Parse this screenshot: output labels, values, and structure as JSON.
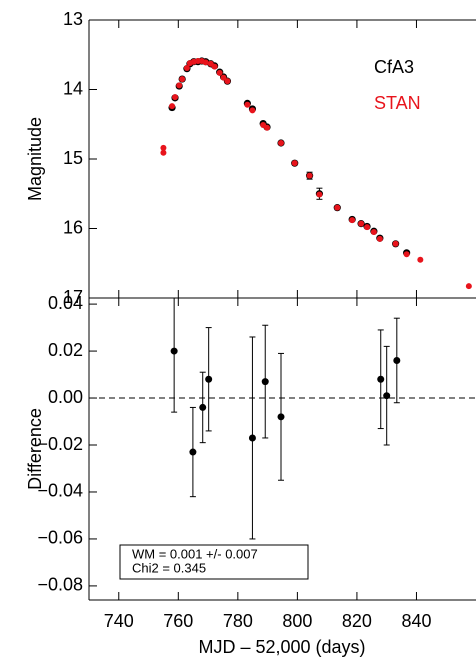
{
  "chart_data": [
    {
      "type": "scatter",
      "ylabel": "Magnitude",
      "xlim": [
        730,
        860
      ],
      "xticks": [
        740,
        760,
        780,
        800,
        820,
        840
      ],
      "ylim": [
        13,
        17
      ],
      "y_inverted": true,
      "yticks": [
        13,
        14,
        15,
        16,
        17
      ],
      "series": [
        {
          "name": "CfA3",
          "color": "#000000",
          "x": [
            757.9,
            758.9,
            760.3,
            761.3,
            762.9,
            763.9,
            765.2,
            766.6,
            767.9,
            769.2,
            770.9,
            772.2,
            773.9,
            775.2,
            776.5,
            783.2,
            784.9,
            788.5,
            789.8,
            794.5,
            799.1,
            804.1,
            807.4,
            813.4,
            818.4,
            821.4,
            823.4,
            825.7,
            827.7,
            833.0,
            836.7
          ],
          "values": [
            14.26,
            14.12,
            13.95,
            13.85,
            13.7,
            13.63,
            13.6,
            13.6,
            13.59,
            13.6,
            13.63,
            13.66,
            13.75,
            13.82,
            13.88,
            14.2,
            14.28,
            14.49,
            14.54,
            14.77,
            15.06,
            15.24,
            15.5,
            15.7,
            15.87,
            15.93,
            15.97,
            16.04,
            16.14,
            16.22,
            16.35
          ],
          "errors": [
            null,
            null,
            null,
            null,
            null,
            null,
            null,
            null,
            null,
            null,
            null,
            null,
            null,
            null,
            null,
            null,
            null,
            null,
            null,
            null,
            null,
            0.05,
            0.08,
            null,
            null,
            null,
            null,
            null,
            null,
            null,
            null
          ]
        },
        {
          "name": "STAN",
          "color": "#e8141c",
          "x": [
            755.0,
            755.0,
            757.9,
            758.9,
            760.3,
            761.3,
            762.9,
            763.9,
            765.2,
            766.6,
            767.9,
            769.2,
            770.9,
            772.2,
            773.9,
            775.2,
            776.5,
            783.2,
            784.9,
            788.5,
            789.8,
            794.5,
            799.1,
            804.1,
            807.4,
            813.4,
            818.4,
            821.4,
            823.4,
            825.7,
            827.7,
            833.0,
            836.7,
            841.3,
            857.6
          ],
          "values": [
            14.84,
            14.91,
            14.24,
            14.11,
            13.94,
            13.85,
            13.69,
            13.62,
            13.6,
            13.59,
            13.59,
            13.61,
            13.63,
            13.67,
            13.76,
            13.83,
            13.88,
            14.22,
            14.3,
            14.51,
            14.55,
            14.77,
            15.06,
            15.24,
            15.51,
            15.7,
            15.88,
            15.93,
            15.98,
            16.05,
            16.15,
            16.22,
            16.37,
            16.45,
            16.83
          ]
        }
      ]
    },
    {
      "type": "errorbar",
      "xlabel": "MJD – 52,000 (days)",
      "ylabel": "Difference",
      "xlim": [
        730,
        860
      ],
      "xticks": [
        740,
        760,
        780,
        800,
        820,
        840
      ],
      "ylim": [
        -0.086,
        0.0426
      ],
      "yticks": [
        0.04,
        0.02,
        {
          "value": 0,
          "label": "0.00"
        },
        {
          "value": -0.02,
          "label": "−0.02"
        },
        {
          "value": -0.04,
          "label": "−0.04"
        },
        {
          "value": -0.06,
          "label": "−0.06"
        },
        {
          "value": -0.08,
          "label": "−0.08"
        }
      ],
      "zero_line": true,
      "color": "#000000",
      "x": [
        758.6,
        764.9,
        768.2,
        770.2,
        784.9,
        789.2,
        794.5,
        828.0,
        830.0,
        833.4
      ],
      "values": [
        0.02,
        -0.023,
        -0.004,
        0.008,
        -0.017,
        0.007,
        -0.008,
        0.008,
        0.001,
        0.016
      ],
      "errors": [
        0.026,
        0.019,
        0.015,
        0.022,
        0.043,
        0.024,
        0.027,
        0.021,
        0.021,
        0.018
      ],
      "annotation": [
        "WM = 0.001 +/- 0.007",
        "Chi2 = 0.345"
      ]
    }
  ]
}
